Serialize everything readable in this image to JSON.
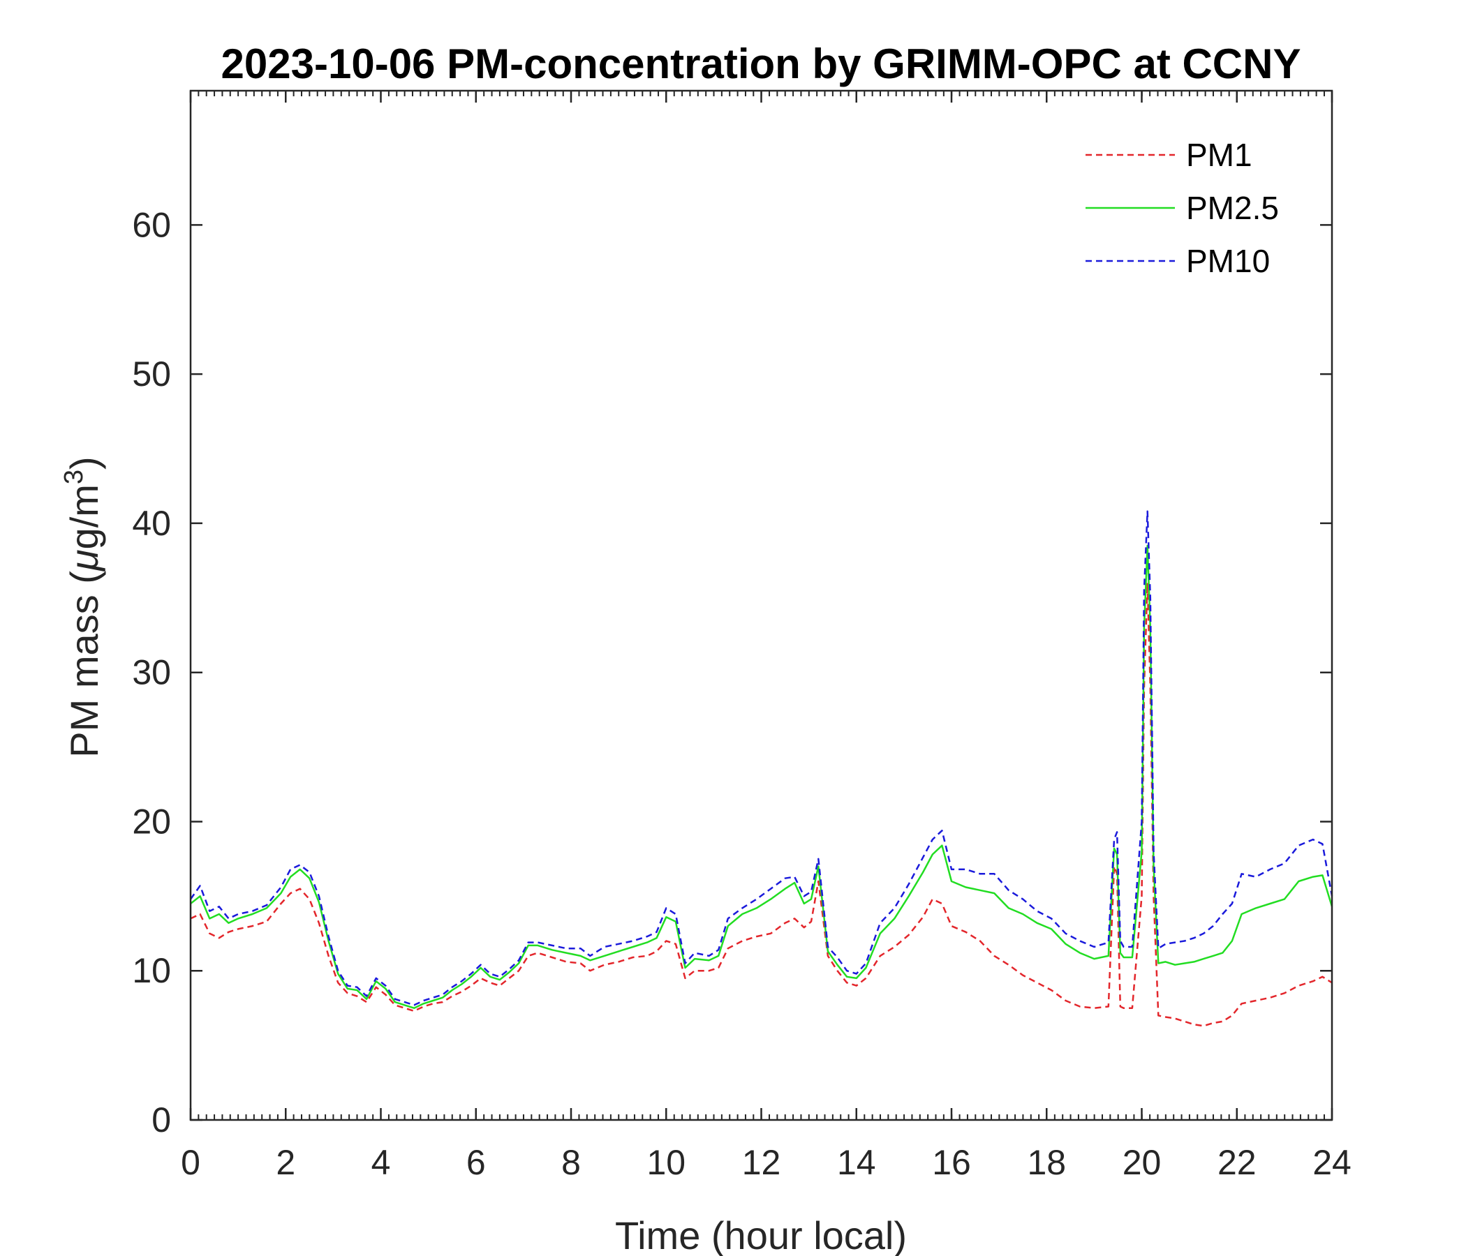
{
  "chart_data": {
    "type": "line",
    "title": "2023-10-06 PM-concentration by GRIMM-OPC at CCNY",
    "xlabel": "Time (hour local)",
    "ylabel_main": "PM mass (",
    "ylabel_mu": "μ",
    "ylabel_units": "g/m",
    "ylabel_sup": "3",
    "ylabel_close": ")",
    "xlim": [
      0,
      24
    ],
    "ylim": [
      0,
      69
    ],
    "xticks": [
      0,
      2,
      4,
      6,
      8,
      10,
      12,
      14,
      16,
      18,
      20,
      22,
      24
    ],
    "yticks": [
      0,
      10,
      20,
      30,
      40,
      50,
      60
    ],
    "minor_x_step": 0.1667,
    "grid": false,
    "legend_position": "top-right",
    "series": [
      {
        "name": "PM1",
        "color": "#e3262b",
        "style": "dashed",
        "x": [
          0,
          0.2,
          0.4,
          0.6,
          0.8,
          1.0,
          1.3,
          1.6,
          1.9,
          2.1,
          2.3,
          2.5,
          2.7,
          2.9,
          3.1,
          3.3,
          3.5,
          3.7,
          3.9,
          4.1,
          4.3,
          4.5,
          4.7,
          4.9,
          5.1,
          5.3,
          5.5,
          5.7,
          5.9,
          6.1,
          6.3,
          6.5,
          6.7,
          6.9,
          7.1,
          7.3,
          7.6,
          7.9,
          8.2,
          8.4,
          8.7,
          9.0,
          9.3,
          9.6,
          9.8,
          10.0,
          10.2,
          10.4,
          10.6,
          10.9,
          11.1,
          11.3,
          11.6,
          11.9,
          12.2,
          12.5,
          12.7,
          12.9,
          13.05,
          13.2,
          13.4,
          13.6,
          13.8,
          14.0,
          14.2,
          14.5,
          14.8,
          15.1,
          15.4,
          15.6,
          15.8,
          16.0,
          16.3,
          16.6,
          16.9,
          17.2,
          17.5,
          17.8,
          18.1,
          18.4,
          18.7,
          19.0,
          19.3,
          19.42,
          19.48,
          19.55,
          19.62,
          19.8,
          20.0,
          20.05,
          20.12,
          20.18,
          20.25,
          20.35,
          20.5,
          20.7,
          20.9,
          21.1,
          21.3,
          21.5,
          21.7,
          21.9,
          22.1,
          22.4,
          22.7,
          23.0,
          23.3,
          23.6,
          23.8,
          24.0
        ],
        "values": [
          13.5,
          13.8,
          12.5,
          12.2,
          12.6,
          12.8,
          13.0,
          13.3,
          14.5,
          15.2,
          15.5,
          14.8,
          13.2,
          11.0,
          9.2,
          8.5,
          8.3,
          7.9,
          8.9,
          8.4,
          7.7,
          7.5,
          7.3,
          7.6,
          7.8,
          7.9,
          8.3,
          8.6,
          9.0,
          9.5,
          9.2,
          9.0,
          9.5,
          10.0,
          11.0,
          11.2,
          10.9,
          10.6,
          10.5,
          10.0,
          10.4,
          10.6,
          10.9,
          11.0,
          11.3,
          12.0,
          11.8,
          9.5,
          10.0,
          10.0,
          10.2,
          11.5,
          12.0,
          12.3,
          12.5,
          13.2,
          13.5,
          12.9,
          13.3,
          16.0,
          11.0,
          10.0,
          9.2,
          9.0,
          9.5,
          11.0,
          11.6,
          12.4,
          13.6,
          14.8,
          14.5,
          13.0,
          12.6,
          12.0,
          11.0,
          10.4,
          9.7,
          9.2,
          8.7,
          8.0,
          7.6,
          7.5,
          7.6,
          17.0,
          16.5,
          7.6,
          7.5,
          7.5,
          15.0,
          29.0,
          36.0,
          29.0,
          15.0,
          7.0,
          6.9,
          6.8,
          6.6,
          6.4,
          6.3,
          6.5,
          6.6,
          7.0,
          7.8,
          8.0,
          8.2,
          8.5,
          9.0,
          9.3,
          9.6,
          9.2
        ]
      },
      {
        "name": "PM2.5",
        "color": "#22dd22",
        "style": "solid",
        "x": [
          0,
          0.2,
          0.4,
          0.6,
          0.8,
          1.0,
          1.3,
          1.6,
          1.9,
          2.1,
          2.3,
          2.5,
          2.7,
          2.9,
          3.1,
          3.3,
          3.5,
          3.7,
          3.9,
          4.1,
          4.3,
          4.5,
          4.7,
          4.9,
          5.1,
          5.3,
          5.5,
          5.7,
          5.9,
          6.1,
          6.3,
          6.5,
          6.7,
          6.9,
          7.1,
          7.3,
          7.6,
          7.9,
          8.2,
          8.4,
          8.7,
          9.0,
          9.3,
          9.6,
          9.8,
          10.0,
          10.2,
          10.4,
          10.6,
          10.9,
          11.1,
          11.3,
          11.6,
          11.9,
          12.2,
          12.5,
          12.7,
          12.9,
          13.05,
          13.2,
          13.4,
          13.6,
          13.8,
          14.0,
          14.2,
          14.5,
          14.8,
          15.1,
          15.4,
          15.6,
          15.8,
          16.0,
          16.3,
          16.6,
          16.9,
          17.2,
          17.5,
          17.8,
          18.1,
          18.4,
          18.7,
          19.0,
          19.3,
          19.42,
          19.48,
          19.55,
          19.62,
          19.8,
          20.0,
          20.05,
          20.12,
          20.18,
          20.25,
          20.35,
          20.5,
          20.7,
          20.9,
          21.1,
          21.3,
          21.5,
          21.7,
          21.9,
          22.1,
          22.4,
          22.7,
          23.0,
          23.3,
          23.6,
          23.8,
          24.0
        ],
        "values": [
          14.5,
          15.0,
          13.5,
          13.8,
          13.2,
          13.5,
          13.8,
          14.2,
          15.2,
          16.3,
          16.8,
          16.2,
          14.6,
          12.0,
          9.8,
          8.8,
          8.7,
          8.1,
          9.3,
          8.8,
          7.9,
          7.7,
          7.5,
          7.8,
          8.0,
          8.2,
          8.7,
          9.1,
          9.6,
          10.2,
          9.6,
          9.4,
          9.9,
          10.5,
          11.7,
          11.7,
          11.4,
          11.2,
          11.0,
          10.7,
          11.0,
          11.3,
          11.6,
          11.9,
          12.2,
          13.6,
          13.3,
          10.2,
          10.8,
          10.7,
          11.0,
          13.0,
          13.8,
          14.2,
          14.8,
          15.5,
          15.9,
          14.5,
          14.8,
          17.0,
          11.3,
          10.4,
          9.6,
          9.5,
          10.2,
          12.5,
          13.5,
          15.0,
          16.6,
          17.8,
          18.4,
          16.0,
          15.6,
          15.4,
          15.2,
          14.2,
          13.8,
          13.2,
          12.8,
          11.8,
          11.2,
          10.8,
          11.0,
          18.2,
          17.8,
          11.2,
          10.9,
          10.9,
          18.0,
          33.0,
          38.5,
          33.0,
          17.0,
          10.5,
          10.6,
          10.4,
          10.5,
          10.6,
          10.8,
          11.0,
          11.2,
          12.0,
          13.8,
          14.2,
          14.5,
          14.8,
          16.0,
          16.3,
          16.4,
          14.3
        ]
      },
      {
        "name": "PM10",
        "color": "#1a1adb",
        "style": "dashed",
        "x": [
          0,
          0.2,
          0.4,
          0.6,
          0.8,
          1.0,
          1.3,
          1.6,
          1.9,
          2.1,
          2.3,
          2.5,
          2.7,
          2.9,
          3.1,
          3.3,
          3.5,
          3.7,
          3.9,
          4.1,
          4.3,
          4.5,
          4.7,
          4.9,
          5.1,
          5.3,
          5.5,
          5.7,
          5.9,
          6.1,
          6.3,
          6.5,
          6.7,
          6.9,
          7.1,
          7.3,
          7.6,
          7.9,
          8.2,
          8.4,
          8.7,
          9.0,
          9.3,
          9.6,
          9.8,
          10.0,
          10.2,
          10.4,
          10.6,
          10.9,
          11.1,
          11.3,
          11.6,
          11.9,
          12.2,
          12.5,
          12.7,
          12.9,
          13.05,
          13.2,
          13.4,
          13.6,
          13.8,
          14.0,
          14.2,
          14.5,
          14.8,
          15.1,
          15.4,
          15.6,
          15.8,
          16.0,
          16.3,
          16.6,
          16.9,
          17.2,
          17.5,
          17.8,
          18.1,
          18.4,
          18.7,
          19.0,
          19.3,
          19.42,
          19.48,
          19.55,
          19.62,
          19.8,
          20.0,
          20.05,
          20.12,
          20.18,
          20.25,
          20.35,
          20.5,
          20.7,
          20.9,
          21.1,
          21.3,
          21.5,
          21.7,
          21.9,
          22.1,
          22.4,
          22.7,
          23.0,
          23.3,
          23.6,
          23.8,
          24.0
        ],
        "values": [
          14.8,
          15.7,
          14.0,
          14.3,
          13.5,
          13.8,
          14.0,
          14.4,
          15.6,
          16.8,
          17.1,
          16.6,
          15.0,
          12.3,
          10.0,
          9.0,
          8.9,
          8.3,
          9.5,
          9.0,
          8.1,
          7.9,
          7.7,
          8.0,
          8.2,
          8.4,
          8.9,
          9.3,
          9.8,
          10.4,
          9.8,
          9.6,
          10.1,
          10.7,
          11.9,
          11.9,
          11.7,
          11.5,
          11.5,
          11.0,
          11.6,
          11.8,
          12.0,
          12.3,
          12.6,
          14.2,
          13.8,
          10.5,
          11.2,
          11.0,
          11.4,
          13.5,
          14.2,
          14.8,
          15.5,
          16.2,
          16.3,
          15.0,
          15.3,
          17.5,
          11.6,
          10.9,
          10.0,
          9.8,
          10.5,
          13.2,
          14.2,
          15.8,
          17.6,
          18.8,
          19.4,
          16.8,
          16.8,
          16.5,
          16.5,
          15.4,
          14.8,
          14.0,
          13.5,
          12.5,
          12.0,
          11.6,
          11.9,
          18.8,
          19.3,
          12.0,
          11.6,
          11.6,
          20.0,
          35.5,
          40.8,
          35.0,
          18.0,
          11.5,
          11.8,
          11.9,
          12.0,
          12.2,
          12.5,
          13.0,
          13.8,
          14.5,
          16.5,
          16.3,
          16.8,
          17.2,
          18.4,
          18.8,
          18.5,
          15.0
        ]
      }
    ]
  }
}
